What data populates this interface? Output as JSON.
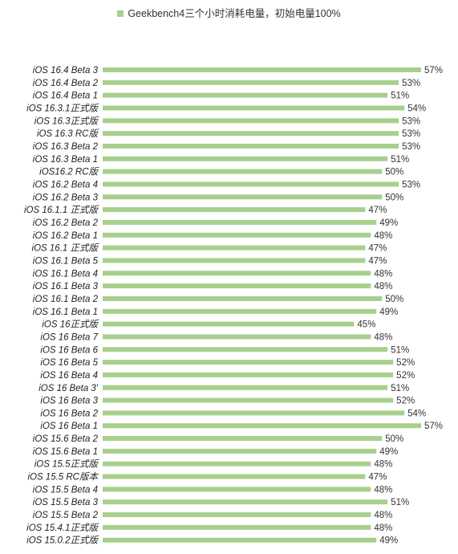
{
  "legend": {
    "label": "Geekbench4三个小时消耗电量，初始电量100%"
  },
  "colors": {
    "bar": "#a8d08d",
    "category_text": "#222222",
    "value_text": "#333333"
  },
  "chart_data": {
    "type": "bar",
    "orientation": "horizontal",
    "value_suffix": "%",
    "legend_position": "top-center",
    "grid": false,
    "series": [
      {
        "name": "Geekbench4三个小时消耗电量，初始电量100%"
      }
    ],
    "categories": [
      "iOS 16.4 Beta 3",
      "iOS 16.4 Beta 2",
      "iOS 16.4 Beta 1",
      "iOS 16.3.1正式版",
      "iOS 16.3正式版",
      "iOS 16.3 RC版",
      "iOS 16.3 Beta 2",
      "iOS 16.3 Beta 1",
      "iOS16.2 RC版",
      "iOS 16.2 Beta 4",
      "iOS 16.2 Beta 3",
      "iOS 16.1.1 正式版",
      "iOS 16.2 Beta 2",
      "iOS 16.2 Beta 1",
      "iOS 16.1 正式版",
      "iOS 16.1 Beta 5",
      "iOS 16.1 Beta 4",
      "iOS 16.1 Beta 3",
      "iOS 16.1 Beta 2",
      "iOS 16.1 Beta 1",
      "iOS 16正式版",
      "iOS 16 Beta 7",
      "iOS 16 Beta 6",
      "iOS 16 Beta 5",
      "iOS 16 Beta 4",
      "iOS 16 Beta 3'",
      "iOS 16 Beta 3",
      "iOS 16 Beta 2",
      "iOS 16 Beta 1",
      "iOS 15.6 Beta 2",
      "iOS 15.6 Beta 1",
      "iOS 15.5正式版",
      "iOS 15.5 RC版本",
      "iOS 15.5 Beta 4",
      "iOS 15.5 Beta 3",
      "iOS 15.5 Beta 2",
      "iOS 15.4.1正式版",
      "iOS 15.0.2正式版"
    ],
    "values": [
      57,
      53,
      51,
      54,
      53,
      53,
      53,
      51,
      50,
      53,
      50,
      47,
      49,
      48,
      47,
      47,
      48,
      48,
      50,
      49,
      45,
      48,
      51,
      52,
      52,
      51,
      52,
      54,
      57,
      50,
      49,
      48,
      47,
      48,
      51,
      48,
      48,
      49
    ]
  }
}
